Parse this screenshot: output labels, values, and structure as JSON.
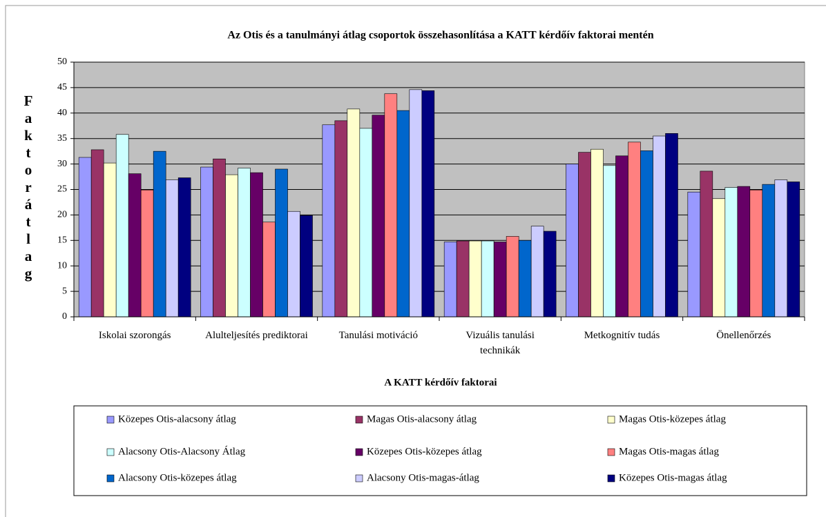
{
  "chart_data": {
    "type": "bar",
    "title": "Az Otis és a tanulmányi átlag csoportok összehasonlítása a KATT kérdőív faktorai mentén",
    "x_label": "A KATT kérdőív faktorai",
    "y_label": "Faktorátlag",
    "categories": [
      "Iskolai szorongás",
      "Alulteljesítés prediktorai",
      "Tanulási motiváció",
      "Vizuális tanulási technikák",
      "Metkognitív tudás",
      "Önellenőrzés"
    ],
    "series": [
      {
        "name": "Közepes Otis-alacsony átlag",
        "color": "#9999ff",
        "values": [
          31.3,
          29.4,
          37.7,
          14.7,
          30.0,
          24.5
        ]
      },
      {
        "name": "Magas Otis-alacsony átlag",
        "color": "#993366",
        "values": [
          32.8,
          31.0,
          38.5,
          14.9,
          32.3,
          28.6
        ]
      },
      {
        "name": "Magas Otis-közepes átlag",
        "color": "#ffffcc",
        "values": [
          30.2,
          27.9,
          40.8,
          14.9,
          32.9,
          23.2
        ]
      },
      {
        "name": "Alacsony Otis-Alacsony Átlag",
        "color": "#ccffff",
        "values": [
          35.8,
          29.2,
          37.0,
          14.9,
          29.7,
          25.4
        ]
      },
      {
        "name": "Közepes Otis-közepes átlag",
        "color": "#660066",
        "values": [
          28.1,
          28.3,
          39.6,
          14.7,
          31.6,
          25.6
        ]
      },
      {
        "name": "Magas Otis-magas átlag",
        "color": "#ff8080",
        "values": [
          24.9,
          18.6,
          43.8,
          15.8,
          34.3,
          24.9
        ]
      },
      {
        "name": "Alacsony Otis-közepes átlag",
        "color": "#0066cc",
        "values": [
          32.5,
          29.0,
          40.5,
          15.0,
          32.6,
          26.0
        ]
      },
      {
        "name": "Alacsony Otis-magas-átlag",
        "color": "#ccccff",
        "values": [
          26.9,
          20.7,
          44.6,
          17.8,
          35.5,
          26.9
        ]
      },
      {
        "name": "Közepes Otis-magas átlag",
        "color": "#000080",
        "values": [
          27.3,
          19.9,
          44.4,
          16.8,
          36.0,
          26.5
        ]
      }
    ],
    "ylim": [
      0,
      50
    ],
    "yticks": [
      0,
      5,
      10,
      15,
      20,
      25,
      30,
      35,
      40,
      45,
      50
    ],
    "grid": true
  }
}
